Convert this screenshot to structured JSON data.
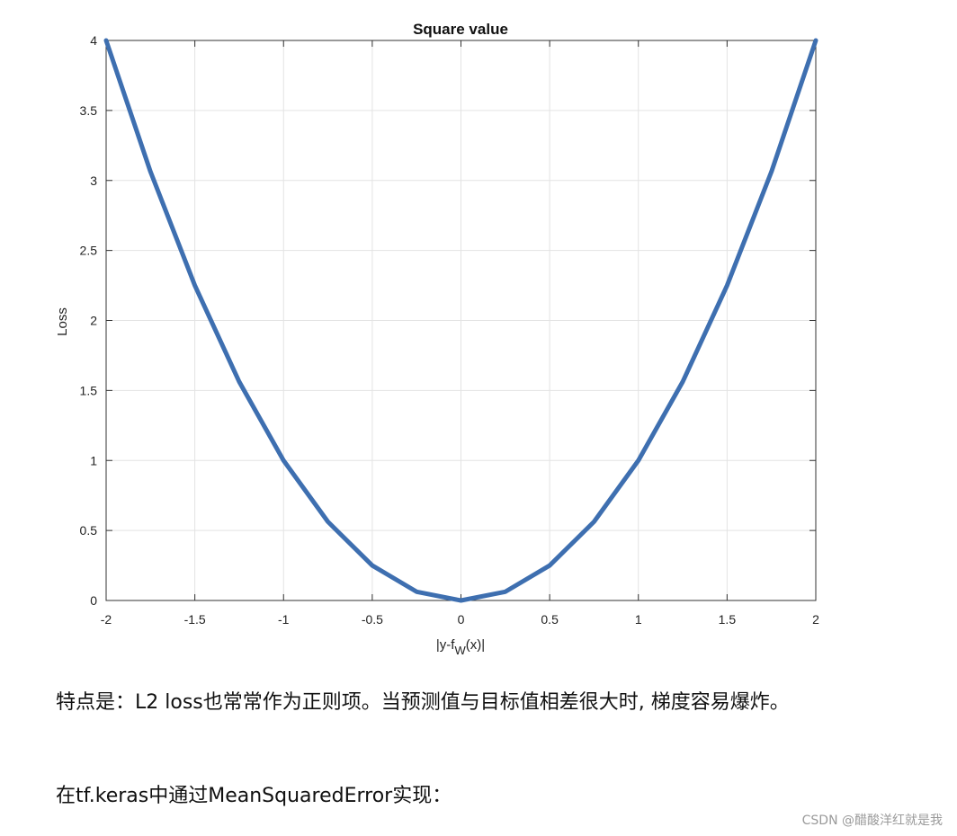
{
  "chart_data": {
    "type": "line",
    "title": "Square value",
    "xlabel_main": "|y-f",
    "xlabel_sub": "W",
    "xlabel_tail": "(x)|",
    "ylabel": "Loss",
    "xlim": [
      -2,
      2
    ],
    "ylim": [
      0,
      4
    ],
    "grid": true,
    "x_ticks": [
      -2,
      -1.5,
      -1,
      -0.5,
      0,
      0.5,
      1,
      1.5,
      2
    ],
    "x_tick_labels": [
      "-2",
      "-1.5",
      "-1",
      "-0.5",
      "0",
      "0.5",
      "1",
      "1.5",
      "2"
    ],
    "y_ticks": [
      0,
      0.5,
      1,
      1.5,
      2,
      2.5,
      3,
      3.5,
      4
    ],
    "y_tick_labels": [
      "0",
      "0.5",
      "1",
      "1.5",
      "2",
      "2.5",
      "3",
      "3.5",
      "4"
    ],
    "series": [
      {
        "color": "#3e6fb0",
        "x": [
          -2,
          -1.75,
          -1.5,
          -1.25,
          -1,
          -0.75,
          -0.5,
          -0.25,
          0,
          0.25,
          0.5,
          0.75,
          1,
          1.25,
          1.5,
          1.75,
          2
        ],
        "y": [
          4,
          3.0625,
          2.25,
          1.5625,
          1,
          0.5625,
          0.25,
          0.0625,
          0,
          0.0625,
          0.25,
          0.5625,
          1,
          1.5625,
          2.25,
          3.0625,
          4
        ]
      }
    ]
  },
  "text": {
    "paragraph1": "特点是：L2 loss也常常作为正则项。当预测值与目标值相差很大时, 梯度容易爆炸。",
    "paragraph2": "在tf.keras中通过MeanSquaredError实现：",
    "watermark": "CSDN @醋酸洋红就是我"
  }
}
